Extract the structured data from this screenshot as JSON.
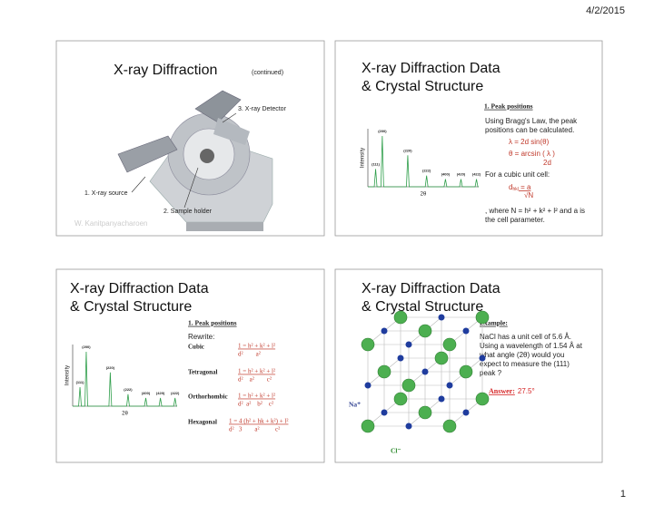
{
  "header": {
    "date": "4/2/2015"
  },
  "slide1": {
    "title": "X-ray Diffraction",
    "subtitle": "(continued)",
    "labels": [
      "3. X-ray Detector",
      "1. X-ray source",
      "2. Sample holder"
    ],
    "credit": "W. Kanitpanyacharoen"
  },
  "pattern": {
    "peaks": [
      "(111)",
      "(200)",
      "(220)",
      "(222)",
      "(400)",
      "(420)",
      "(422)"
    ],
    "y_label": "Intensity",
    "x_label": "2θ"
  },
  "slide2": {
    "title": [
      "X-ray Diffraction Data",
      "& Crystal Structure"
    ],
    "heading": "1. Peak positions",
    "body": [
      "Using Bragg's Law, the peak",
      "positions can be calculated."
    ],
    "bragg": "λ = 2d sin(θ)",
    "arcsin": "θ = arcsin ( λ )",
    "arcsin_den": "2d",
    "cubic": "For a cubic unit cell:",
    "d": "d",
    "d_sub": "hkl",
    "d_rhs": " = a",
    "sqrt": "√N",
    "where": [
      ", where N = h² + k² + l² and a is",
      "the cell parameter."
    ]
  },
  "slide3": {
    "title": [
      "X-ray Diffraction Data",
      "& Crystal Structure"
    ],
    "heading": "1. Peak positions",
    "rewrite": "Rewrite:",
    "systems": [
      {
        "name": "Cubic",
        "num": "1 = h² + k² + l²",
        "den": "d²        a²"
      },
      {
        "name": "Tetragonal",
        "num": "1 = h² + k² + l²",
        "den": "d²    a²        c²"
      },
      {
        "name": "Orthorhombic",
        "num": "1 = h² + k² + l²",
        "den": "d²  a²    b²    c²"
      },
      {
        "name": "Hexagonal",
        "num": "1 = 4 (h² + hk + k²) + l²",
        "den": "d²   3        a²          c²"
      }
    ]
  },
  "slide4": {
    "title": [
      "X-ray Diffraction Data",
      "& Crystal Structure"
    ],
    "heading": "Example:",
    "problem": [
      "NaCl has a unit cell of 5.6 Å.",
      "Using a wavelength of 1.54 Å at",
      "what angle (2θ) would you",
      "expect to measure the (111)",
      "peak ?"
    ],
    "answer_label": "Answer:",
    "answer": "27.5°",
    "na": "Na⁺",
    "cl": "Cl⁻"
  },
  "footer": {
    "page": "1"
  }
}
